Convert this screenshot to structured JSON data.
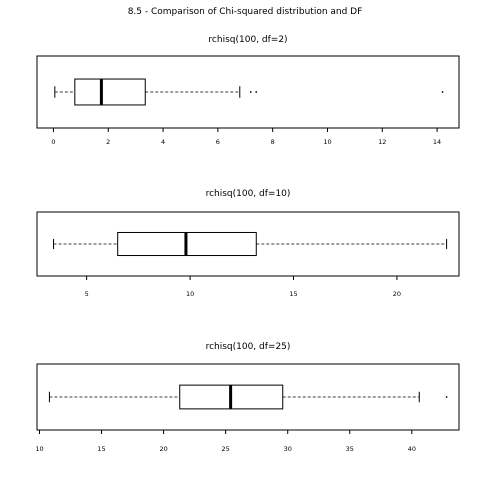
{
  "page": {
    "title": "8.5 - Comparison of Chi-squared distribution and DF"
  },
  "chart_data": [
    {
      "type": "boxplot",
      "title": "rchisq(100, df=2)",
      "orientation": "horizontal",
      "xlim": [
        -0.6,
        14.8
      ],
      "ticks": [
        0,
        2,
        4,
        6,
        8,
        10,
        12,
        14
      ],
      "tick_labels": [
        "0",
        "2",
        "4",
        "6",
        "8",
        "10",
        "12",
        "14"
      ],
      "stats": {
        "whisker_low": 0.05,
        "q1": 0.78,
        "median": 1.75,
        "q3": 3.35,
        "whisker_high": 6.8
      },
      "outliers": [
        7.2,
        7.4,
        14.2
      ]
    },
    {
      "type": "boxplot",
      "title": "rchisq(100, df=10)",
      "orientation": "horizontal",
      "xlim": [
        2.6,
        23.0
      ],
      "ticks": [
        5,
        10,
        15,
        20
      ],
      "tick_labels": [
        "5",
        "10",
        "15",
        "20"
      ],
      "stats": {
        "whisker_low": 3.4,
        "q1": 6.5,
        "median": 9.8,
        "q3": 13.2,
        "whisker_high": 22.4
      },
      "outliers": []
    },
    {
      "type": "boxplot",
      "title": "rchisq(100, df=25)",
      "orientation": "horizontal",
      "xlim": [
        9.8,
        43.8
      ],
      "ticks": [
        10,
        15,
        20,
        25,
        30,
        35,
        40
      ],
      "tick_labels": [
        "10",
        "15",
        "20",
        "25",
        "30",
        "35",
        "40"
      ],
      "stats": {
        "whisker_low": 10.8,
        "q1": 21.3,
        "median": 25.4,
        "q3": 29.6,
        "whisker_high": 40.6
      },
      "outliers": [
        42.8
      ]
    }
  ]
}
